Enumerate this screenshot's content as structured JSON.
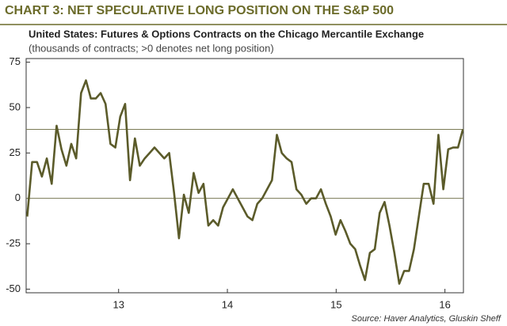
{
  "chart_data": {
    "type": "line",
    "title": "CHART 3: NET SPECULATIVE LONG POSITION ON THE S&P 500",
    "subtitle": "United States: Futures & Options Contracts on the Chicago Mercantile Exchange",
    "y_label": "(thousands of contracts; >0 denotes net long position)",
    "source": "Source: Haver Analytics, Gluskin Sheff",
    "x": [
      12.16,
      12.205,
      12.25,
      12.295,
      12.34,
      12.385,
      12.43,
      12.475,
      12.52,
      12.565,
      12.61,
      12.655,
      12.7,
      12.745,
      12.79,
      12.835,
      12.88,
      12.925,
      12.97,
      13.015,
      13.06,
      13.105,
      13.15,
      13.195,
      13.24,
      13.285,
      13.33,
      13.375,
      13.42,
      13.465,
      13.51,
      13.555,
      13.6,
      13.645,
      13.69,
      13.735,
      13.78,
      13.825,
      13.87,
      13.915,
      13.96,
      14.005,
      14.05,
      14.095,
      14.14,
      14.185,
      14.23,
      14.275,
      14.32,
      14.365,
      14.41,
      14.455,
      14.5,
      14.545,
      14.59,
      14.635,
      14.68,
      14.725,
      14.77,
      14.815,
      14.86,
      14.905,
      14.95,
      14.995,
      15.04,
      15.085,
      15.13,
      15.175,
      15.22,
      15.265,
      15.31,
      15.355,
      15.4,
      15.445,
      15.49,
      15.535,
      15.58,
      15.625,
      15.67,
      15.715,
      15.76,
      15.805,
      15.85,
      15.895,
      15.94,
      15.985,
      16.03,
      16.075,
      16.12,
      16.165
    ],
    "series": [
      {
        "color": "#5b5b2a",
        "values": [
          -10,
          20,
          20,
          12,
          22,
          8,
          40,
          27,
          18,
          30,
          22,
          58,
          65,
          55,
          55,
          58,
          52,
          30,
          28,
          45,
          52,
          10,
          33,
          18,
          22,
          25,
          28,
          25,
          22,
          25,
          3,
          -22,
          2,
          -8,
          14,
          3,
          8,
          -15,
          -12,
          -15,
          -5,
          0,
          5,
          0,
          -5,
          -10,
          -12,
          -3,
          0,
          5,
          10,
          35,
          25,
          22,
          20,
          5,
          2,
          -3,
          0,
          0,
          5,
          -3,
          -10,
          -20,
          -12,
          -18,
          -25,
          -28,
          -37,
          -45,
          -30,
          -28,
          -8,
          -2,
          -15,
          -30,
          -47,
          -40,
          -40,
          -28,
          -10,
          8,
          8,
          -3,
          35,
          5,
          27,
          28,
          28,
          38
        ]
      }
    ],
    "xlim": [
      12.15,
      16.17
    ],
    "xticks": [
      13,
      14,
      15,
      16
    ],
    "ylim": [
      -52,
      77
    ],
    "yticks": [
      -50,
      -25,
      0,
      25,
      50,
      75
    ],
    "reference_lines": [
      0,
      38
    ]
  }
}
